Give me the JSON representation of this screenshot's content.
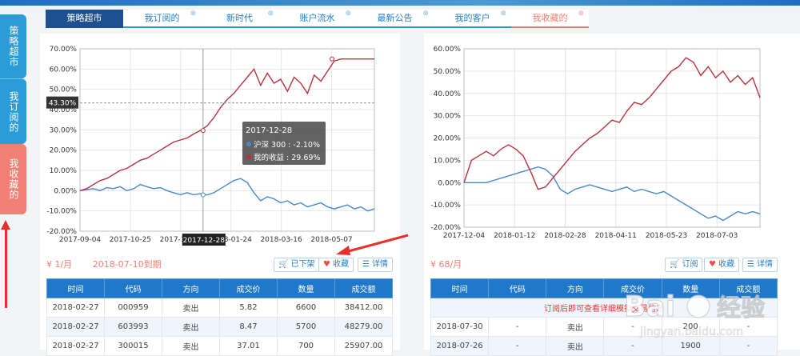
{
  "sidebar": {
    "items": [
      {
        "label": "策略超市"
      },
      {
        "label": "我订阅的"
      },
      {
        "label": "我收藏的"
      }
    ]
  },
  "tabs": [
    {
      "label": "策略超市",
      "close": ""
    },
    {
      "label": "我订阅的",
      "close": "⊗"
    },
    {
      "label": "新时代",
      "close": "⊗"
    },
    {
      "label": "账户流水",
      "close": "⊗"
    },
    {
      "label": "最新公告",
      "close": "⊗"
    },
    {
      "label": "我的客户",
      "close": "⊗"
    },
    {
      "label": "我收藏的",
      "close": "⊗"
    }
  ],
  "colors": {
    "benchmark": "#4a88cc",
    "mine": "#b8333f",
    "accent": "#1f78c9",
    "fav": "#f08074"
  },
  "chart_data": [
    {
      "type": "line",
      "x_ticks": [
        "2017-09-04",
        "2017-10-25",
        "2017-12-28",
        "2018-01-24",
        "2018-03-16",
        "2018-05-07"
      ],
      "y_ticks": [
        "70.00%",
        "60.00%",
        "50.00%",
        "40.00%",
        "30.00%",
        "20.00%",
        "10.00%",
        "0.00%",
        "-10.00%",
        "-20.00%"
      ],
      "ylim": [
        -20,
        70
      ],
      "crosshair": {
        "y_label": "43.30%",
        "x_label": "2017-12-28"
      },
      "tooltip": {
        "date": "2017-12-28",
        "lines": [
          "沪深 300 : -2.10%",
          "我的收益 : 29.69%"
        ]
      },
      "series": [
        {
          "name": "沪深 300",
          "values": [
            0,
            0.5,
            1,
            0,
            1.5,
            1,
            2,
            0,
            1,
            3,
            2,
            1,
            1.5,
            0,
            -1,
            -2,
            -1,
            -2,
            -1.5,
            -2.1,
            -1,
            1,
            3,
            5,
            6,
            4,
            -1,
            -5,
            -3,
            -4,
            -6,
            -5,
            -7,
            -6,
            -8,
            -7,
            -6,
            -8,
            -9,
            -8,
            -7,
            -9,
            -8,
            -10,
            -9
          ]
        },
        {
          "name": "我的收益",
          "values": [
            0,
            1,
            3,
            5,
            6,
            8,
            10,
            11,
            13,
            15,
            16,
            18,
            20,
            22,
            24,
            25,
            26,
            28,
            29.69,
            32,
            36,
            41,
            45,
            48,
            52,
            56,
            60,
            52,
            58,
            53,
            55,
            49,
            56,
            53,
            48,
            57,
            54,
            59,
            64,
            65,
            65,
            65,
            65,
            65,
            65
          ]
        }
      ]
    },
    {
      "type": "line",
      "x_ticks": [
        "2017-12-04",
        "2018-01-12",
        "2018-02-28",
        "2018-04-11",
        "2018-05-23",
        "2018-07-03"
      ],
      "y_ticks": [
        "60.00%",
        "50.00%",
        "40.00%",
        "30.00%",
        "20.00%",
        "10.00%",
        "0.00%",
        "-10.00%",
        "-20.00%"
      ],
      "ylim": [
        -20,
        60
      ],
      "series": [
        {
          "name": "沪深 300",
          "values": [
            0,
            0,
            0,
            0,
            1,
            2,
            3,
            4,
            5,
            6,
            7,
            6,
            3,
            -3,
            -5,
            -3,
            -2,
            -1,
            -2,
            -3,
            -4,
            -3,
            -2,
            -4,
            -3,
            -4,
            -5,
            -4,
            -6,
            -8,
            -10,
            -12,
            -14,
            -16,
            -15,
            -17,
            -15,
            -13,
            -14,
            -13,
            -14
          ]
        },
        {
          "name": "我的收益",
          "values": [
            0,
            10,
            12,
            14,
            12,
            15,
            17,
            15,
            12,
            5,
            -3,
            -2,
            2,
            6,
            10,
            14,
            17,
            20,
            22,
            25,
            28,
            27,
            32,
            36,
            35,
            38,
            42,
            46,
            50,
            52,
            56,
            54,
            48,
            52,
            47,
            50,
            45,
            48,
            44,
            47,
            38
          ]
        }
      ]
    }
  ],
  "left": {
    "price": "¥ 1/月",
    "expire": "2018-07-10到期",
    "buttons": {
      "unlist": "已下架",
      "fav": "收藏",
      "detail": "详情"
    },
    "table": {
      "headers": [
        "时间",
        "代码",
        "方向",
        "成交价",
        "数量",
        "成交额"
      ],
      "rows": [
        [
          "2018-02-27",
          "000959",
          "卖出",
          "5.82",
          "6600",
          "38412.00"
        ],
        [
          "2018-02-27",
          "603993",
          "卖出",
          "8.47",
          "5700",
          "48279.00"
        ],
        [
          "2018-02-27",
          "300015",
          "卖出",
          "37.01",
          "700",
          "25907.00"
        ]
      ]
    }
  },
  "right": {
    "price": "¥ 68/月",
    "buttons": {
      "subscribe": "订阅",
      "fav": "收藏",
      "detail": "详情"
    },
    "table": {
      "headers": [
        "时间",
        "代码",
        "方向",
        "成交价",
        "数量",
        "成交额"
      ],
      "notice": "订阅后即可查看详细模拟交易信息",
      "rows": [
        [
          "2018-07-30",
          "-",
          "卖出",
          "-",
          "200",
          "-"
        ],
        [
          "2018-07-26",
          "-",
          "卖出",
          "-",
          "1900",
          "-"
        ]
      ]
    }
  },
  "watermark": {
    "brand": "Bai",
    "brand_cn": "经验",
    "url": "jingyan.baidu.com"
  }
}
